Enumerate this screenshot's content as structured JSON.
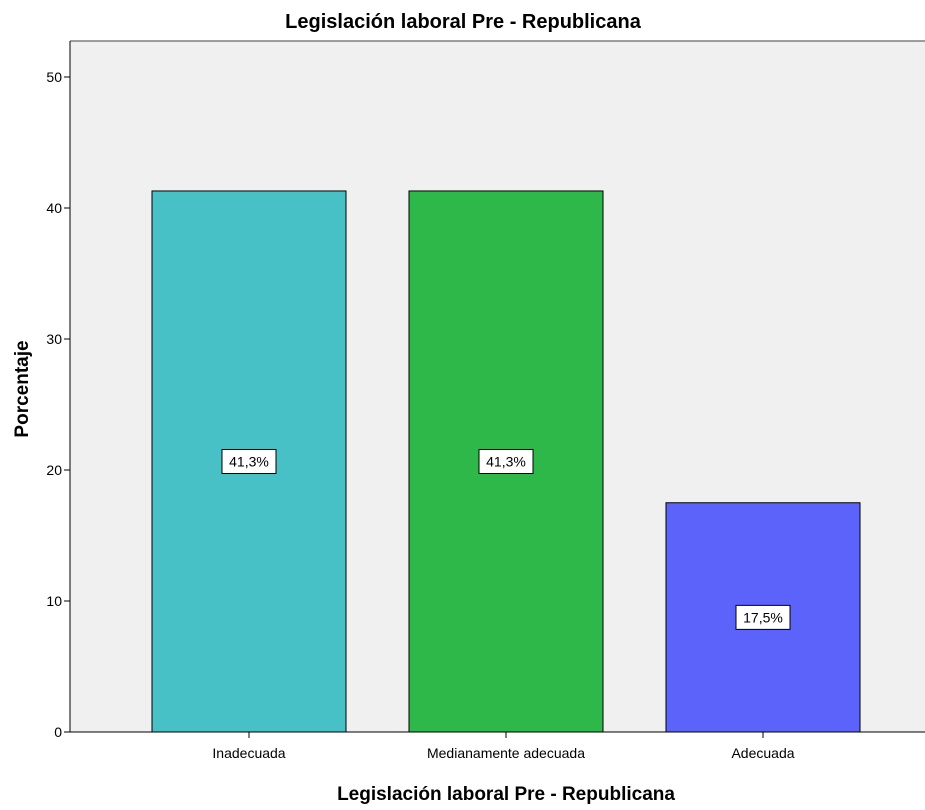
{
  "chart_data": {
    "type": "bar",
    "title": "Legislación laboral Pre - Republicana",
    "xlabel": "Legislación laboral Pre - Republicana",
    "ylabel": "Porcentaje",
    "categories": [
      "Inadecuada",
      "Medianamente adecuada",
      "Adecuada"
    ],
    "values": [
      41.3,
      41.3,
      17.5
    ],
    "data_labels": [
      "41,3%",
      "41,3%",
      "17,5%"
    ],
    "colors": [
      "#48c1c6",
      "#2eb84a",
      "#5b63fb"
    ],
    "ylim": [
      0,
      50
    ],
    "yticks": [
      0,
      10,
      20,
      30,
      40,
      50
    ],
    "ytick_labels": [
      "0",
      "10",
      "20",
      "30",
      "40",
      "50"
    ],
    "grid": false,
    "legend": "none",
    "plot_background": "#f0f0f0"
  }
}
